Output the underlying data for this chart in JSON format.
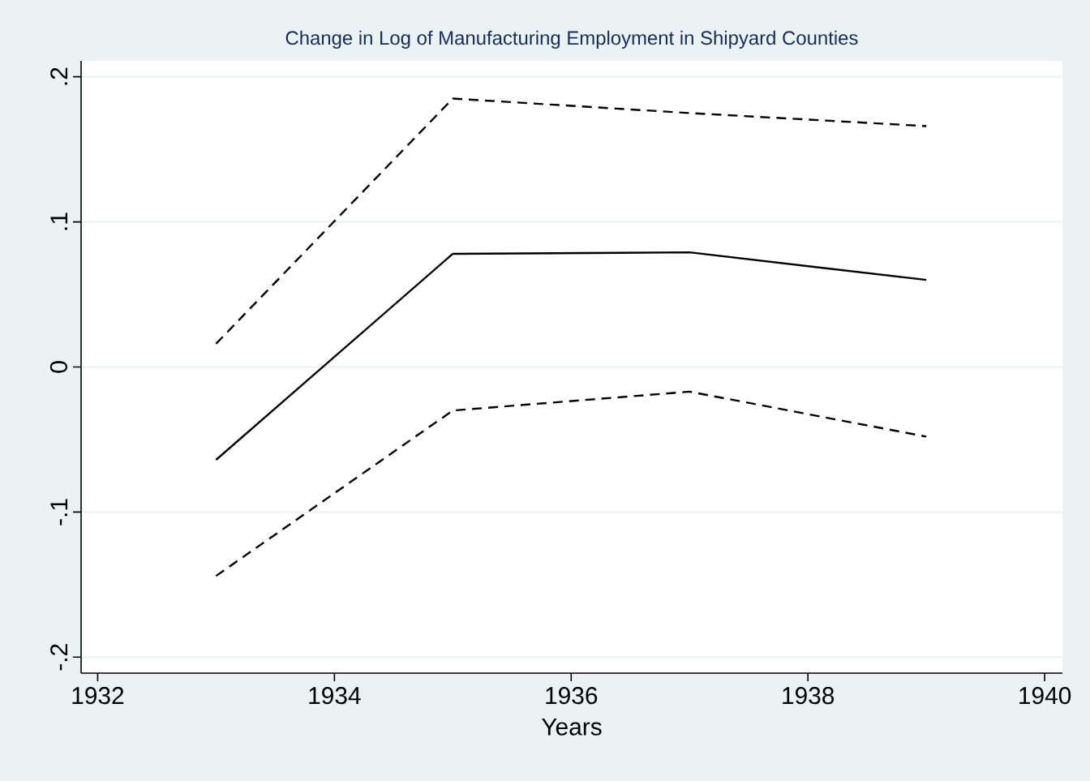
{
  "chart_data": {
    "type": "line",
    "title": "Change in Log of Manufacturing Employment in Shipyard Counties",
    "xlabel": "Years",
    "x": [
      1933,
      1935,
      1937,
      1939
    ],
    "series": [
      {
        "color": "#000000",
        "line_style": "solid",
        "values": [
          -0.064,
          0.078,
          0.079,
          0.06
        ]
      },
      {
        "color": "#000000",
        "line_style": "dashed",
        "values": [
          0.016,
          0.185,
          0.175,
          0.166
        ]
      },
      {
        "color": "#000000",
        "line_style": "dashed",
        "values": [
          -0.144,
          -0.03,
          -0.017,
          -0.048
        ]
      }
    ],
    "xlim": [
      1931.86,
      1940.15
    ],
    "ylim": [
      -0.211,
      0.211
    ],
    "xticks": [
      1932,
      1934,
      1936,
      1938,
      1940
    ],
    "yticks": [
      {
        "value": -0.2,
        "label": "-.2"
      },
      {
        "value": -0.1,
        "label": "-.1"
      },
      {
        "value": 0,
        "label": "0"
      },
      {
        "value": 0.1,
        "label": ".1"
      },
      {
        "value": 0.2,
        "label": ".2"
      }
    ],
    "grid": "y",
    "marker": "none"
  }
}
